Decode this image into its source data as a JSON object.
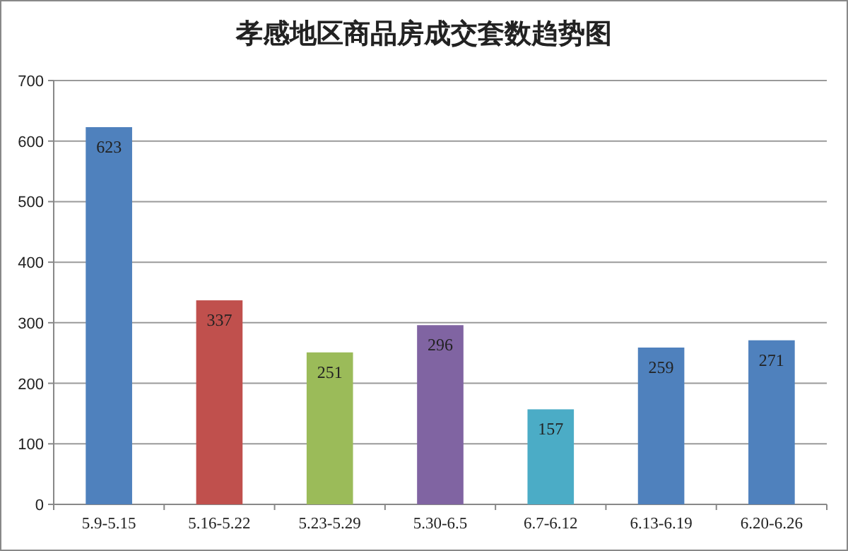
{
  "chart_data": {
    "type": "bar",
    "title": "孝感地区商品房成交套数趋势图",
    "categories": [
      "5.9-5.15",
      "5.16-5.22",
      "5.23-5.29",
      "5.30-6.5",
      "6.7-6.12",
      "6.13-6.19",
      "6.20-6.26"
    ],
    "values": [
      623,
      337,
      251,
      296,
      157,
      259,
      271
    ],
    "colors": [
      "#4f81bd",
      "#c0504d",
      "#9bbb59",
      "#8064a2",
      "#4bacc6",
      "#4f81bd",
      "#4f81bd"
    ],
    "ylim": [
      0,
      700
    ],
    "yticks": [
      0,
      100,
      200,
      300,
      400,
      500,
      600,
      700
    ],
    "grid": "y",
    "data_labels": true
  }
}
